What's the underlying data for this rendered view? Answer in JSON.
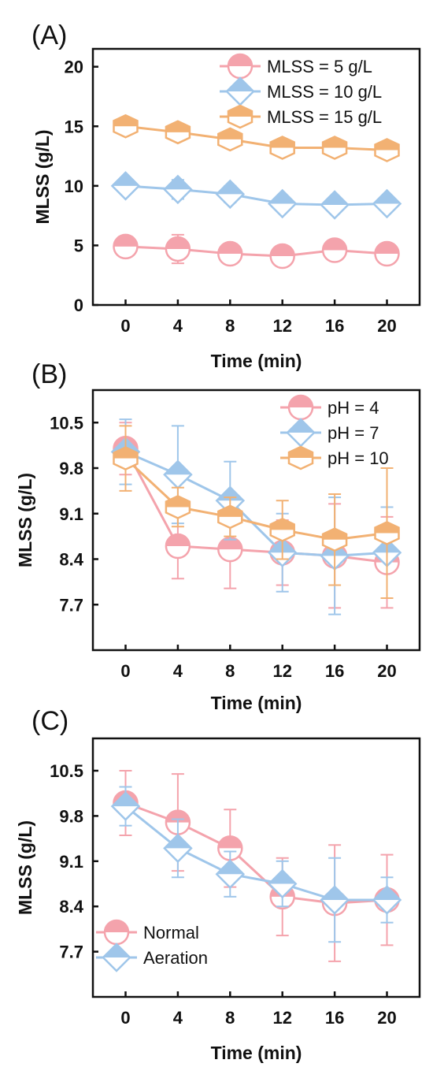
{
  "colors": {
    "pink": "#f4a3ac",
    "blue": "#9fc6ea",
    "orange": "#f2b173",
    "axis": "#111111"
  },
  "chart_data": [
    {
      "type": "line",
      "panel_label": "(A)",
      "xlabel": "Time (min)",
      "ylabel": "MLSS (g/L)",
      "x": [
        0,
        4,
        8,
        12,
        16,
        20
      ],
      "x_ticks": [
        "0",
        "4",
        "8",
        "12",
        "16",
        "20"
      ],
      "xlim": [
        -2.5,
        22.5
      ],
      "ylim": [
        0,
        21.5
      ],
      "y_ticks": [
        "0",
        "5",
        "10",
        "15",
        "20"
      ],
      "y_tick_values": [
        0,
        5,
        10,
        15,
        20
      ],
      "legend_position": "top-right",
      "series": [
        {
          "name": "MLSS = 5 g/L",
          "marker": "circle",
          "color": "#f4a3ac",
          "values": [
            4.9,
            4.7,
            4.3,
            4.1,
            4.6,
            4.3
          ],
          "errors": [
            0.6,
            1.2,
            0.6,
            0.5,
            0.7,
            0.8
          ]
        },
        {
          "name": "MLSS = 10 g/L",
          "marker": "diamond",
          "color": "#9fc6ea",
          "values": [
            10.0,
            9.7,
            9.3,
            8.5,
            8.4,
            8.5
          ],
          "errors": [
            0.6,
            0.8,
            0.7,
            0.4,
            0.4,
            0.5
          ]
        },
        {
          "name": "MLSS = 15 g/L",
          "marker": "hexagon",
          "color": "#f2b173",
          "values": [
            15.0,
            14.5,
            13.9,
            13.2,
            13.2,
            13.0
          ],
          "errors": [
            0.7,
            0.5,
            0.7,
            0.6,
            0.6,
            0.6
          ]
        }
      ]
    },
    {
      "type": "line",
      "panel_label": "(B)",
      "xlabel": "Time (min)",
      "ylabel": "MLSS (g/L)",
      "x": [
        0,
        4,
        8,
        12,
        16,
        20
      ],
      "x_ticks": [
        "0",
        "4",
        "8",
        "12",
        "16",
        "20"
      ],
      "xlim": [
        -2.5,
        22.5
      ],
      "ylim": [
        7.0,
        11.0
      ],
      "y_ticks": [
        "10.5",
        "9.8",
        "9.1",
        "8.4",
        "7.7"
      ],
      "y_tick_values": [
        10.5,
        9.8,
        9.1,
        8.4,
        7.7
      ],
      "legend_position": "top-right",
      "series": [
        {
          "name": "pH = 4",
          "marker": "circle",
          "color": "#f4a3ac",
          "values": [
            10.1,
            8.6,
            8.55,
            8.5,
            8.45,
            8.35
          ],
          "errors": [
            0.4,
            0.5,
            0.6,
            0.5,
            0.8,
            0.7
          ]
        },
        {
          "name": "pH = 7",
          "marker": "diamond",
          "color": "#9fc6ea",
          "values": [
            10.05,
            9.7,
            9.3,
            8.5,
            8.45,
            8.5
          ],
          "errors": [
            0.5,
            0.75,
            0.6,
            0.6,
            0.9,
            0.7
          ]
        },
        {
          "name": "pH = 10",
          "marker": "hexagon",
          "color": "#f2b173",
          "values": [
            9.95,
            9.2,
            9.05,
            8.85,
            8.7,
            8.8
          ],
          "errors": [
            0.5,
            0.3,
            0.3,
            0.45,
            0.7,
            1.0
          ]
        }
      ]
    },
    {
      "type": "line",
      "panel_label": "(C)",
      "xlabel": "Time (min)",
      "ylabel": "MLSS (g/L)",
      "x": [
        0,
        4,
        8,
        12,
        16,
        20
      ],
      "x_ticks": [
        "0",
        "4",
        "8",
        "12",
        "16",
        "20"
      ],
      "xlim": [
        -2.5,
        22.5
      ],
      "ylim": [
        7.0,
        11.0
      ],
      "y_ticks": [
        "10.5",
        "9.8",
        "9.1",
        "8.4",
        "7.7"
      ],
      "y_tick_values": [
        10.5,
        9.8,
        9.1,
        8.4,
        7.7
      ],
      "legend_position": "bottom-left",
      "series": [
        {
          "name": "Normal",
          "marker": "circle",
          "color": "#f4a3ac",
          "values": [
            10.0,
            9.7,
            9.3,
            8.55,
            8.45,
            8.5
          ],
          "errors": [
            0.5,
            0.75,
            0.6,
            0.6,
            0.9,
            0.7
          ]
        },
        {
          "name": "Aeration",
          "marker": "diamond",
          "color": "#9fc6ea",
          "values": [
            9.95,
            9.3,
            8.9,
            8.75,
            8.5,
            8.5
          ],
          "errors": [
            0.3,
            0.45,
            0.35,
            0.35,
            0.65,
            0.35
          ]
        }
      ]
    }
  ]
}
